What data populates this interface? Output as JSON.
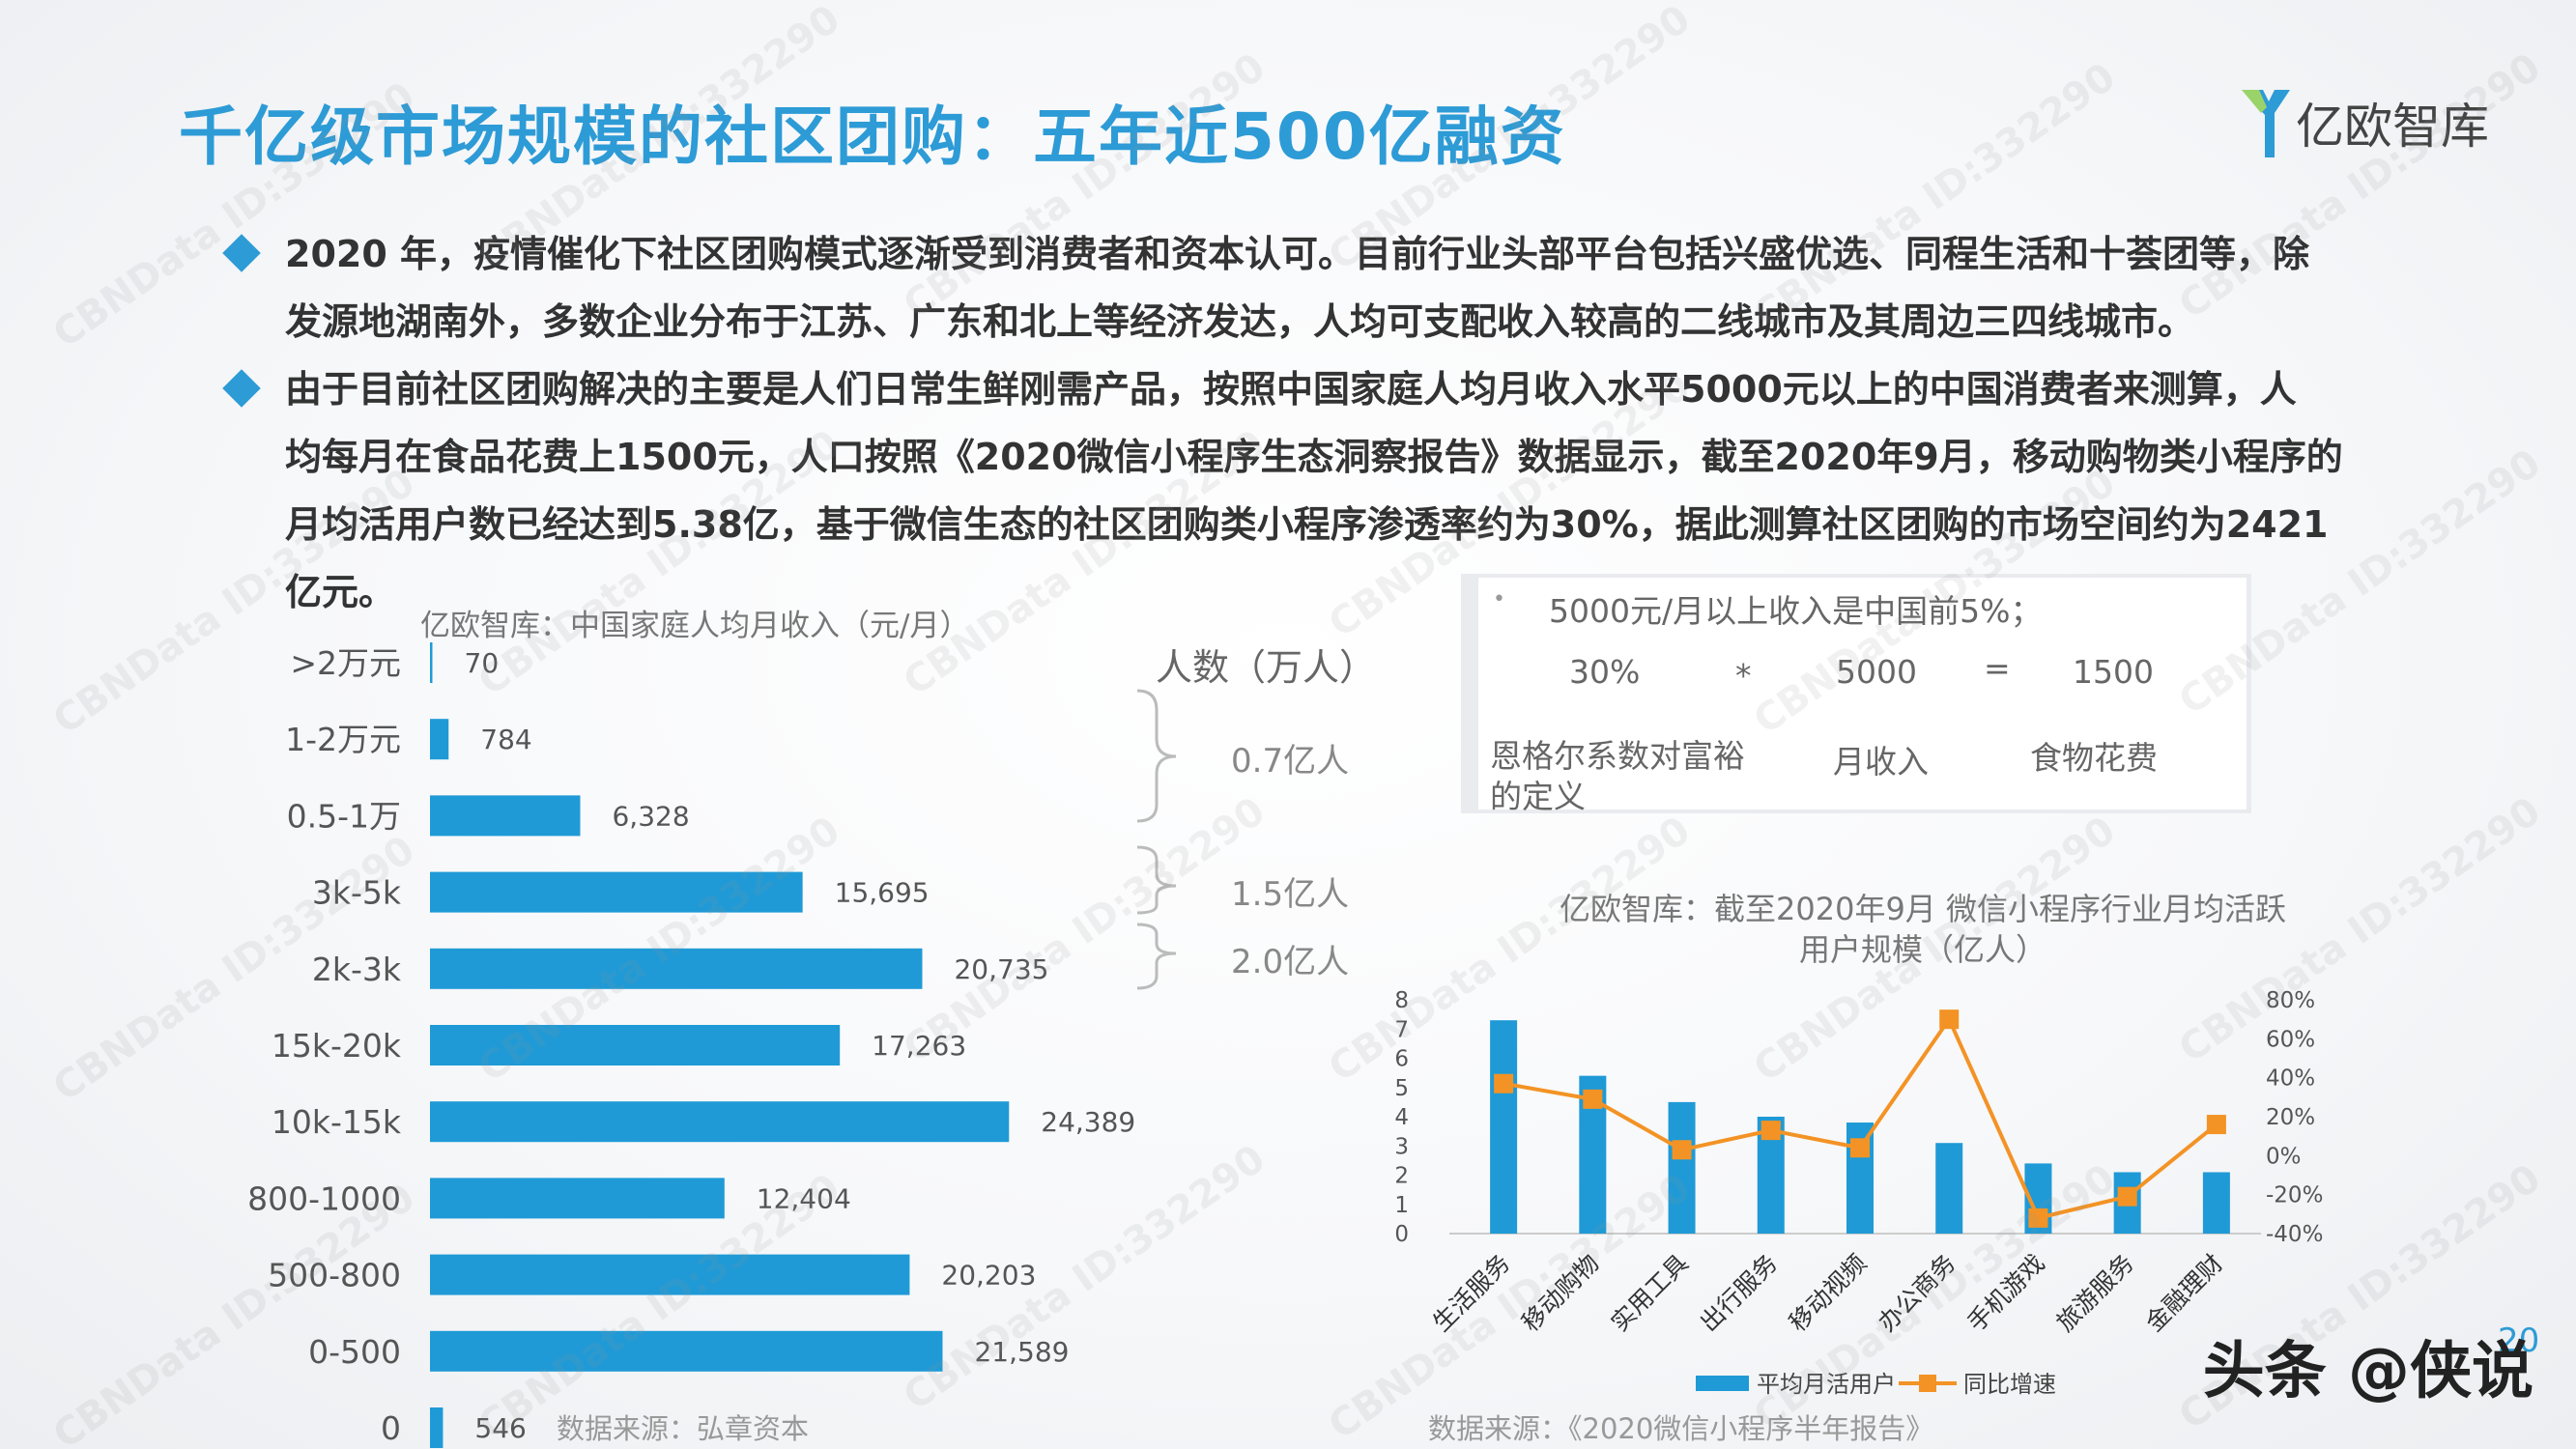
{
  "title": "千亿级市场规模的社区团购：五年近500亿融资",
  "logo": {
    "text": "亿欧智库",
    "icon": "yiou-logo-icon"
  },
  "bullets": [
    {
      "lines": [
        "2020 年，疫情催化下社区团购模式逐渐受到消费者和资本认可。目前行业头部平台包括兴盛优选、同程生活和十荟团等，除",
        "发源地湖南外，多数企业分布于江苏、广东和北上等经济发达，人均可支配收入较高的二线城市及其周边三四线城市。"
      ]
    },
    {
      "lines": [
        " 由于目前社区团购解决的主要是人们日常生鲜刚需产品，按照中国家庭人均月收入水平5000元以上的中国消费者来测算，人",
        "均每月在食品花费上1500元，人口按照《2020微信小程序生态洞察报告》数据显示，截至2020年9月，移动购物类小程序的",
        "月均活用户数已经达到5.38亿，基于微信生态的社区团购类小程序渗透率约为30%，据此测算社区团购的市场空间约为2421",
        "亿元。"
      ]
    }
  ],
  "formula": {
    "note": "5000元/月以上收入是中国前5%；",
    "row": [
      "30%",
      "*",
      "5000",
      "=",
      "1500"
    ],
    "labels": [
      "恩格尔系数对富裕的定义",
      "月收入",
      "食物花费"
    ]
  },
  "braces": {
    "header": "人数（万人）",
    "items": [
      "0.7亿人",
      "1.5亿人",
      "2.0亿人"
    ]
  },
  "chart_data": [
    {
      "type": "bar",
      "orientation": "horizontal",
      "title": "亿欧智库：中国家庭人均月收入（元/月）",
      "categories": [
        ">2万元",
        "1-2万元",
        "0.5-1万",
        "3k-5k",
        "2k-3k",
        "15k-20k",
        "10k-15k",
        "800-1000",
        "500-800",
        "0-500",
        "0"
      ],
      "values": [
        70,
        784,
        6328,
        15695,
        20735,
        17263,
        24389,
        12404,
        20203,
        21589,
        546
      ],
      "value_labels": [
        "70",
        "784",
        "6,328",
        "15,695",
        "20,735",
        "17,263",
        "24,389",
        "12,404",
        "20,203",
        "21,589",
        "546"
      ],
      "xlim": [
        0,
        28000
      ],
      "color": "#1f9ad6",
      "source": "数据来源：弘章资本"
    },
    {
      "type": "bar+line",
      "title": "亿欧智库：截至2020年9月 微信小程序行业月均活跃用户规模（亿人）",
      "categories": [
        "生活服务",
        "移动购物",
        "实用工具",
        "出行服务",
        "移动视频",
        "办公商务",
        "手机游戏",
        "旅游服务",
        "金融理财"
      ],
      "series": [
        {
          "name": "平均月活用户",
          "type": "bar",
          "axis": "left",
          "color": "#1f9ad6",
          "values": [
            7.3,
            5.4,
            4.5,
            4.0,
            3.8,
            3.1,
            2.4,
            2.1,
            2.1
          ]
        },
        {
          "name": "同比增速",
          "type": "line",
          "axis": "right",
          "color": "#f39325",
          "values": [
            37,
            29,
            3,
            13,
            4,
            70,
            -32,
            -21,
            16
          ]
        }
      ],
      "y_left": {
        "min": 0,
        "max": 8,
        "ticks": [
          "0",
          "1",
          "2",
          "3",
          "4",
          "5",
          "6",
          "7",
          "8"
        ]
      },
      "y_right": {
        "min": -40,
        "max": 80,
        "ticks": [
          "-40%",
          "-20%",
          "0%",
          "20%",
          "40%",
          "60%",
          "80%"
        ]
      },
      "legend_position": "bottom",
      "source": "数据来源：《2020微信小程序半年报告》"
    }
  ],
  "watermark": "CBNData ID:332290",
  "footer": {
    "brand": "头条 @侠说",
    "page": "20"
  },
  "colors": {
    "accent": "#2d9bd6",
    "bar": "#1f9ad6",
    "line": "#f39325"
  }
}
